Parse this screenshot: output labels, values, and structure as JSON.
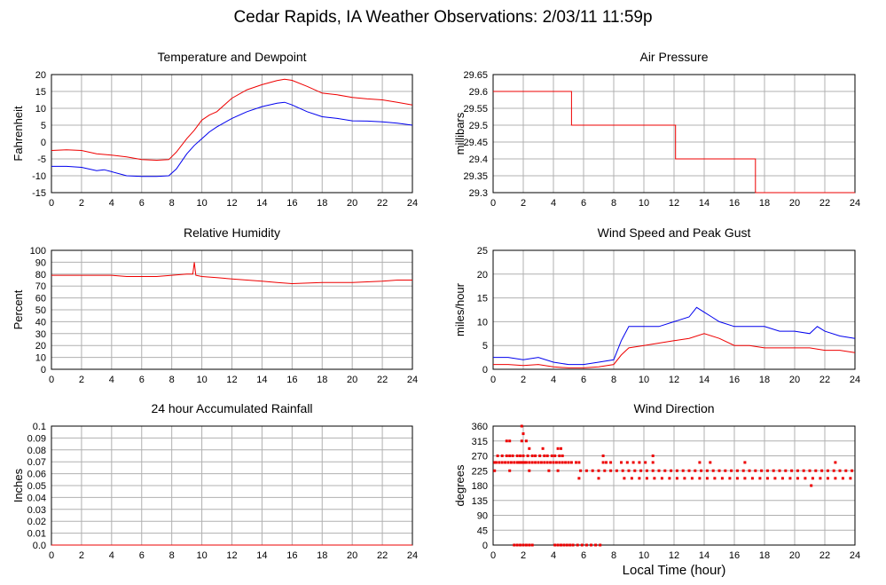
{
  "page": {
    "title": "Cedar Rapids, IA Weather Observations: 2/03/11 11:59p",
    "x_axis_title": "Local Time (hour)"
  },
  "colors": {
    "red": "#ee0000",
    "blue": "#0000ee",
    "grid": "#b0b0b0",
    "frame": "#000000"
  },
  "chart_data": [
    {
      "id": "temperature",
      "type": "line",
      "title": "Temperature and Dewpoint",
      "ylabel": "Fahrenheit",
      "xlim": [
        0,
        24
      ],
      "ylim": [
        -15,
        20
      ],
      "xticks": [
        0,
        2,
        4,
        6,
        8,
        10,
        12,
        14,
        16,
        18,
        20,
        22,
        24
      ],
      "yticks": [
        -15,
        -10,
        -5,
        0,
        5,
        10,
        15,
        20
      ],
      "grid": true,
      "series": [
        {
          "color": "red",
          "x": [
            0,
            1,
            2,
            3,
            4,
            5,
            6,
            7,
            7.8,
            8.3,
            9,
            9.5,
            10,
            10.5,
            11,
            12,
            13,
            14,
            15,
            15.5,
            16,
            17,
            18,
            19,
            20,
            21,
            22,
            23,
            24
          ],
          "y": [
            -2.5,
            -2.3,
            -2.5,
            -3.5,
            -3.9,
            -4.4,
            -5.2,
            -5.4,
            -5.2,
            -3,
            1,
            3.5,
            6.5,
            8,
            9,
            13,
            15.5,
            17,
            18.2,
            18.6,
            18.3,
            16.5,
            14.5,
            14,
            13.2,
            12.8,
            12.5,
            11.8,
            11
          ]
        },
        {
          "color": "blue",
          "x": [
            0,
            1,
            2,
            3,
            3.5,
            4,
            5,
            6,
            7,
            7.8,
            8.3,
            9,
            9.5,
            10,
            10.5,
            11,
            12,
            13,
            14,
            15,
            15.5,
            16,
            17,
            18,
            19,
            20,
            21,
            22,
            23,
            24
          ],
          "y": [
            -7.2,
            -7.2,
            -7.5,
            -8.5,
            -8.2,
            -8.8,
            -10,
            -10.2,
            -10.2,
            -10,
            -8,
            -3.5,
            -1,
            1,
            3,
            4.5,
            7,
            9,
            10.5,
            11.5,
            11.8,
            11,
            9,
            7.5,
            7,
            6.3,
            6.2,
            6,
            5.6,
            5
          ]
        }
      ]
    },
    {
      "id": "pressure",
      "type": "line",
      "title": "Air Pressure",
      "ylabel": "millibars",
      "xlim": [
        0,
        24
      ],
      "ylim": [
        29.3,
        29.65
      ],
      "xticks": [
        0,
        2,
        4,
        6,
        8,
        10,
        12,
        14,
        16,
        18,
        20,
        22,
        24
      ],
      "yticks": [
        29.3,
        29.35,
        29.4,
        29.45,
        29.5,
        29.55,
        29.6,
        29.65
      ],
      "ytick_labels": [
        "29.3",
        "29.35",
        "29.4",
        "29.45",
        "29.5",
        "29.55",
        "29.6",
        "29.65"
      ],
      "grid": true,
      "series": [
        {
          "color": "red",
          "step": true,
          "x": [
            0,
            5.2,
            5.2,
            12.1,
            12.1,
            17.4,
            17.4,
            24
          ],
          "y": [
            29.6,
            29.6,
            29.5,
            29.5,
            29.4,
            29.4,
            29.3,
            29.3
          ]
        }
      ]
    },
    {
      "id": "humidity",
      "type": "line",
      "title": "Relative Humidity",
      "ylabel": "Percent",
      "xlim": [
        0,
        24
      ],
      "ylim": [
        0,
        100
      ],
      "xticks": [
        0,
        2,
        4,
        6,
        8,
        10,
        12,
        14,
        16,
        18,
        20,
        22,
        24
      ],
      "yticks": [
        0,
        10,
        20,
        30,
        40,
        50,
        60,
        70,
        80,
        90,
        100
      ],
      "grid": true,
      "series": [
        {
          "color": "red",
          "x": [
            0,
            2,
            3,
            4,
            5,
            6,
            7,
            8,
            9,
            9.4,
            9.5,
            9.6,
            10,
            11,
            12,
            13,
            14,
            15,
            16,
            17,
            18,
            19,
            20,
            21,
            22,
            23,
            24
          ],
          "y": [
            79,
            79,
            79,
            79,
            78,
            78,
            78,
            79,
            80,
            80,
            90,
            79,
            78,
            77,
            76,
            75,
            74,
            73,
            72,
            72.5,
            73,
            73,
            73,
            73.5,
            74,
            75,
            75
          ]
        }
      ]
    },
    {
      "id": "wind-speed",
      "type": "line",
      "title": "Wind Speed and Peak Gust",
      "ylabel": "miles/hour",
      "xlim": [
        0,
        24
      ],
      "ylim": [
        0,
        25
      ],
      "xticks": [
        0,
        2,
        4,
        6,
        8,
        10,
        12,
        14,
        16,
        18,
        20,
        22,
        24
      ],
      "yticks": [
        0,
        5,
        10,
        15,
        20,
        25
      ],
      "grid": true,
      "series": [
        {
          "color": "blue",
          "x": [
            0,
            1,
            2,
            3,
            4,
            5,
            6,
            7,
            8,
            8.5,
            9,
            10,
            11,
            12,
            13,
            13.5,
            14,
            14.5,
            15,
            16,
            17,
            18,
            19,
            20,
            21,
            21.5,
            22,
            23,
            24
          ],
          "y": [
            2.5,
            2.5,
            2,
            2.5,
            1.5,
            1,
            1,
            1.5,
            2,
            6,
            9,
            9,
            9,
            10,
            11,
            13,
            12,
            11,
            10,
            9,
            9,
            9,
            8,
            8,
            7.5,
            9,
            8,
            7,
            6.5
          ]
        },
        {
          "color": "red",
          "x": [
            0,
            1,
            2,
            3,
            4,
            5,
            6,
            7,
            8,
            8.5,
            9,
            10,
            11,
            12,
            13,
            14,
            15,
            16,
            17,
            18,
            19,
            20,
            21,
            22,
            23,
            24
          ],
          "y": [
            1,
            1,
            0.8,
            1,
            0.5,
            0.3,
            0.3,
            0.5,
            1,
            3,
            4.5,
            5,
            5.5,
            6,
            6.5,
            7.5,
            6.5,
            5,
            5,
            4.5,
            4.5,
            4.5,
            4.5,
            4,
            4,
            3.5
          ]
        }
      ]
    },
    {
      "id": "rainfall",
      "type": "line",
      "title": "24 hour Accumulated Rainfall",
      "ylabel": "Inches",
      "xlim": [
        0,
        24
      ],
      "ylim": [
        0,
        0.1
      ],
      "xticks": [
        0,
        2,
        4,
        6,
        8,
        10,
        12,
        14,
        16,
        18,
        20,
        22,
        24
      ],
      "yticks": [
        0,
        0.01,
        0.02,
        0.03,
        0.04,
        0.05,
        0.06,
        0.07,
        0.08,
        0.09,
        0.1
      ],
      "ytick_labels": [
        "0.0",
        "0.01",
        "0.02",
        "0.03",
        "0.04",
        "0.05",
        "0.06",
        "0.07",
        "0.08",
        "0.09",
        "0.1"
      ],
      "grid": true,
      "series": [
        {
          "color": "red",
          "x": [
            0,
            24
          ],
          "y": [
            0,
            0
          ]
        }
      ]
    },
    {
      "id": "wind-direction",
      "type": "scatter",
      "title": "Wind Direction",
      "ylabel": "degrees",
      "xlim": [
        0,
        24
      ],
      "ylim": [
        0,
        360
      ],
      "xticks": [
        0,
        2,
        4,
        6,
        8,
        10,
        12,
        14,
        16,
        18,
        20,
        22,
        24
      ],
      "yticks": [
        0,
        45,
        90,
        135,
        180,
        225,
        270,
        315,
        360
      ],
      "grid": true,
      "series": [
        {
          "color": "red",
          "x": [
            0.1,
            0.2,
            0.4,
            0.6,
            0.8,
            1.0,
            1.2,
            1.4,
            1.6,
            1.7,
            1.8,
            1.9,
            2.0,
            2.1,
            2.2,
            2.4,
            2.6,
            2.8,
            3.0,
            3.2,
            3.4,
            3.6,
            3.8,
            4.0,
            4.2,
            4.4,
            4.6,
            4.8,
            5.0,
            5.2,
            5.5,
            5.7,
            0.3,
            0.6,
            0.9,
            1.1,
            1.3,
            1.6,
            1.8,
            2.0,
            2.3,
            2.6,
            2.8,
            3.1,
            3.4,
            3.6,
            3.9,
            4.1,
            4.4,
            4.6,
            0.9,
            1.1,
            1.9,
            2.2,
            2.4,
            3.3,
            4.3,
            4.5,
            1.9,
            2.0,
            1.4,
            1.6,
            1.8,
            2.0,
            2.2,
            2.4,
            2.6,
            4.1,
            4.3,
            4.5,
            4.7,
            4.9,
            5.1,
            5.3,
            5.6,
            5.9,
            6.2,
            6.5,
            6.8,
            7.1,
            0.1,
            1.1,
            2.4,
            3.7,
            4.3,
            5.8,
            6.2,
            6.6,
            7.0,
            7.4,
            7.8,
            8.2,
            8.6,
            9.0,
            9.4,
            9.8,
            10.2,
            10.6,
            11.0,
            11.4,
            11.8,
            12.2,
            12.6,
            13.0,
            13.4,
            13.8,
            14.2,
            14.6,
            15.0,
            15.4,
            15.8,
            16.2,
            16.6,
            17.0,
            17.4,
            17.8,
            18.2,
            18.6,
            19.0,
            19.4,
            19.8,
            20.2,
            20.6,
            21.0,
            21.4,
            21.8,
            22.2,
            22.6,
            23.0,
            23.4,
            23.8,
            8.7,
            9.2,
            9.7,
            10.2,
            10.7,
            11.2,
            11.7,
            12.2,
            12.7,
            13.2,
            13.7,
            14.2,
            14.7,
            15.2,
            15.7,
            16.2,
            16.7,
            17.2,
            17.7,
            18.2,
            18.7,
            19.2,
            19.7,
            20.2,
            20.7,
            21.2,
            21.7,
            22.2,
            22.7,
            23.2,
            23.7,
            8.5,
            8.9,
            9.3,
            9.7,
            10.1,
            10.6,
            7.3,
            7.5,
            7.8,
            13.7,
            14.4,
            16.7,
            22.7,
            5.7,
            7.0,
            7.3,
            10.6,
            21.1
          ],
          "y": [
            250,
            250,
            250,
            250,
            250,
            250,
            250,
            250,
            250,
            250,
            250,
            250,
            250,
            250,
            250,
            250,
            250,
            250,
            250,
            250,
            250,
            250,
            250,
            250,
            250,
            250,
            250,
            250,
            250,
            250,
            250,
            250,
            270,
            270,
            270,
            270,
            270,
            270,
            270,
            270,
            270,
            270,
            270,
            270,
            270,
            270,
            270,
            270,
            270,
            270,
            315,
            315,
            315,
            315,
            292,
            292,
            292,
            292,
            360,
            337,
            0,
            0,
            0,
            0,
            0,
            0,
            0,
            0,
            0,
            0,
            0,
            0,
            0,
            0,
            0,
            0,
            0,
            0,
            0,
            0,
            225,
            225,
            225,
            225,
            225,
            225,
            225,
            225,
            225,
            225,
            225,
            225,
            225,
            225,
            225,
            225,
            225,
            225,
            225,
            225,
            225,
            225,
            225,
            225,
            225,
            225,
            225,
            225,
            225,
            225,
            225,
            225,
            225,
            225,
            225,
            225,
            225,
            225,
            225,
            225,
            225,
            225,
            225,
            225,
            225,
            225,
            225,
            225,
            225,
            225,
            225,
            202,
            202,
            202,
            202,
            202,
            202,
            202,
            202,
            202,
            202,
            202,
            202,
            202,
            202,
            202,
            202,
            202,
            202,
            202,
            202,
            202,
            202,
            202,
            202,
            202,
            202,
            202,
            202,
            202,
            202,
            202,
            250,
            250,
            250,
            250,
            250,
            250,
            250,
            250,
            250,
            250,
            250,
            250,
            250,
            202,
            202,
            270,
            270,
            180
          ]
        }
      ]
    }
  ]
}
